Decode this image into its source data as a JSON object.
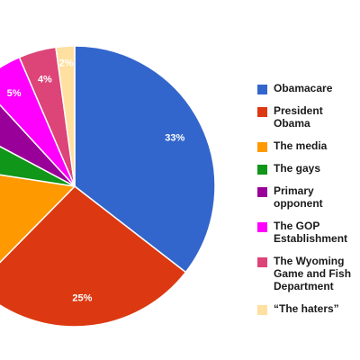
{
  "chart_data": {
    "type": "pie",
    "title": "",
    "legend_position": "right",
    "slices": [
      {
        "name": "Obamacare",
        "value": 33,
        "label": "33%",
        "color": "#3366cc"
      },
      {
        "name": "President Obama",
        "value": 25,
        "label": "25%",
        "color": "#dc3912"
      },
      {
        "name": "The media",
        "value": 14,
        "label": "",
        "color": "#ff9900"
      },
      {
        "name": "The gays",
        "value": 5,
        "label": "",
        "color": "#109618"
      },
      {
        "name": "Primary opponent",
        "value": 5,
        "label": "",
        "color": "#990099"
      },
      {
        "name": "The GOP Establishment",
        "value": 5,
        "label": "5%",
        "color": "#ff00ff"
      },
      {
        "name": "The Wyoming Game and Fish\nDepartment",
        "value": 4,
        "label": "4%",
        "color": "#dd4477"
      },
      {
        "name": "“The haters”",
        "value": 2,
        "label": "2%",
        "color": "#ffe0a0"
      }
    ]
  }
}
